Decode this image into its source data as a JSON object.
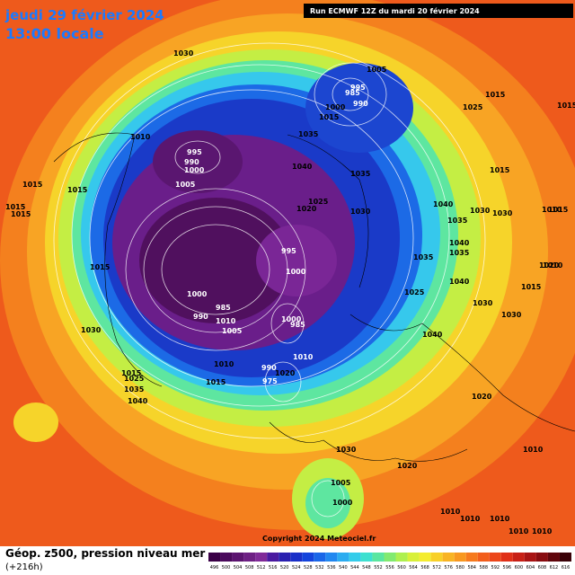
{
  "header": {
    "date": "jeudi 29 février 2024",
    "time": "13:00 locale",
    "run": "Run ECMWF 12Z du mardi 20 février 2024"
  },
  "footer": {
    "title": "Géop. z500, pression niveau mer",
    "lead": "(+216h)",
    "copyright": "Copyright 2024 Meteociel.fr"
  },
  "isobar_labels": [
    "1030",
    "1005",
    "995",
    "985",
    "990",
    "1000",
    "1015",
    "1025",
    "1010",
    "995",
    "990",
    "1000",
    "1005",
    "1035",
    "1040",
    "1015",
    "1015",
    "1015",
    "1015",
    "1035",
    "1025",
    "1020",
    "1030",
    "1040",
    "1035",
    "1010",
    "995",
    "1000",
    "1040",
    "1035",
    "1040",
    "1015",
    "1025",
    "1030",
    "1000",
    "985",
    "990",
    "1010",
    "1005",
    "985",
    "1000",
    "1030",
    "1040",
    "1015",
    "1015",
    "1010",
    "1010",
    "990",
    "975",
    "1020",
    "1025",
    "1035",
    "1040",
    "1015",
    "1030",
    "1020",
    "1020",
    "1030",
    "1020",
    "1005",
    "1000",
    "1010",
    "1010",
    "1010",
    "1010",
    "1010",
    "1010",
    "1015",
    "1010",
    "1015",
    "1030",
    "1030",
    "1035",
    "1015",
    "1015"
  ],
  "colorbar": [
    {
      "label": "496",
      "color": "#3a0046"
    },
    {
      "label": "500",
      "color": "#4b0a5c"
    },
    {
      "label": "504",
      "color": "#5c1470"
    },
    {
      "label": "508",
      "color": "#6e2084"
    },
    {
      "label": "512",
      "color": "#802a98"
    },
    {
      "label": "516",
      "color": "#4a1aa0"
    },
    {
      "label": "520",
      "color": "#2a20b0"
    },
    {
      "label": "524",
      "color": "#1a30c8"
    },
    {
      "label": "528",
      "color": "#1444dc"
    },
    {
      "label": "532",
      "color": "#1a66e8"
    },
    {
      "label": "536",
      "color": "#2288f0"
    },
    {
      "label": "540",
      "color": "#2cacf0"
    },
    {
      "label": "544",
      "color": "#34ccea"
    },
    {
      "label": "548",
      "color": "#3ee0d0"
    },
    {
      "label": "552",
      "color": "#5ae6a0"
    },
    {
      "label": "556",
      "color": "#82ea70"
    },
    {
      "label": "560",
      "color": "#aef050"
    },
    {
      "label": "564",
      "color": "#d8f03a"
    },
    {
      "label": "568",
      "color": "#f4ec30"
    },
    {
      "label": "572",
      "color": "#f8d028"
    },
    {
      "label": "576",
      "color": "#f8b424"
    },
    {
      "label": "580",
      "color": "#f89820"
    },
    {
      "label": "584",
      "color": "#f67a1e"
    },
    {
      "label": "588",
      "color": "#f25e1c"
    },
    {
      "label": "592",
      "color": "#ec461a"
    },
    {
      "label": "596",
      "color": "#e03018"
    },
    {
      "label": "600",
      "color": "#c82016"
    },
    {
      "label": "604",
      "color": "#a81414"
    },
    {
      "label": "608",
      "color": "#880c10"
    },
    {
      "label": "612",
      "color": "#60060c"
    },
    {
      "label": "616",
      "color": "#3a0208"
    }
  ]
}
